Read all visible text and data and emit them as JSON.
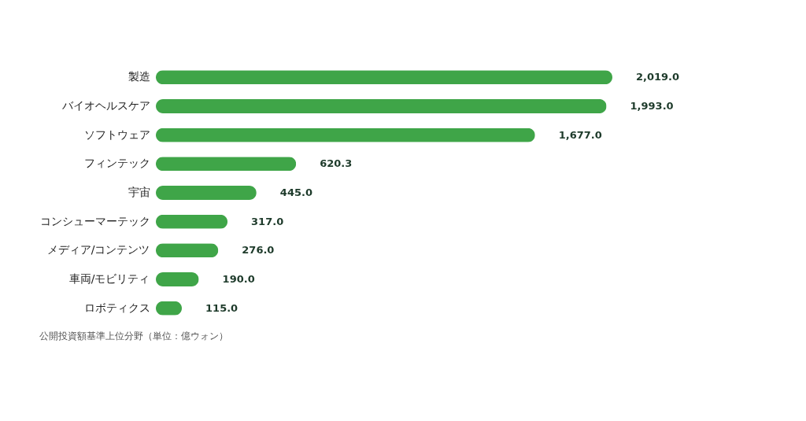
{
  "chart_data": {
    "type": "bar",
    "orientation": "horizontal",
    "categories": [
      "製造",
      "バイオヘルスケア",
      "ソフトウェア",
      "フィンテック",
      "宇宙",
      "コンシューマーテック",
      "メディア/コンテンツ",
      "車両/モビリティ",
      "ロボティクス"
    ],
    "values": [
      2019.0,
      1993.0,
      1677.0,
      620.3,
      445.0,
      317.0,
      276.0,
      190.0,
      115.0
    ],
    "value_labels": [
      "2,019.0",
      "1,993.0",
      "1,677.0",
      "620.3",
      "445.0",
      "317.0",
      "276.0",
      "190.0",
      "115.0"
    ],
    "color": "#3fa548",
    "annotations": [
      "公開投資額基準上位分野（単位：億ウォン）"
    ]
  }
}
